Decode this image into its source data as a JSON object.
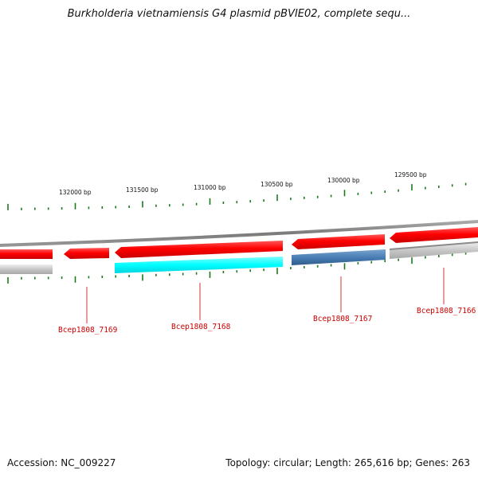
{
  "title": "Burkholderia vietnamiensis G4 plasmid pBVIE02, complete sequ...",
  "footer": {
    "accession_label": "Accession: NC_009227",
    "summary_label": "Topology: circular; Length: 265,616 bp; Genes: 263"
  },
  "bp_labels": [
    "132000 bp",
    "131500 bp",
    "131000 bp",
    "130500 bp",
    "130000 bp",
    "129500 bp"
  ],
  "genes": [
    {
      "name": "Bcep1808_7169",
      "color": "#ff0000",
      "match_color": "#c8c8c8"
    },
    {
      "name": "Bcep1808_7168",
      "color": "#ff0000",
      "match_color": "#00ffff"
    },
    {
      "name": "Bcep1808_7167",
      "color": "#ff0000",
      "match_color": "#4a7eb5"
    },
    {
      "name": "Bcep1808_7166",
      "color": "#ff0000",
      "match_color": "#c8c8c8"
    }
  ],
  "colors": {
    "ticks": "#1a7a1a",
    "backbone": "#808080",
    "gene_fill": "#ff0000",
    "label": "#cc0000",
    "gray_match": "#c8c8c8",
    "cyan_match": "#00ffff",
    "blue_match": "#4a7eb5"
  }
}
